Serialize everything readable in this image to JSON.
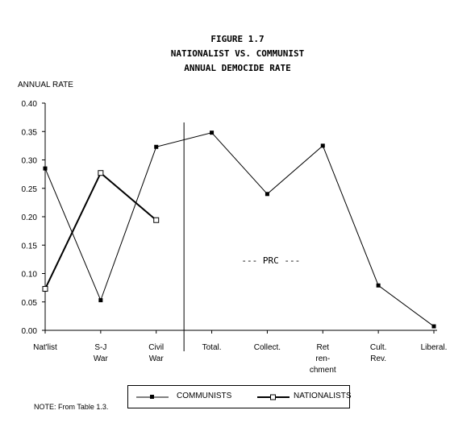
{
  "title_lines": [
    "FIGURE 1.7",
    "NATIONALIST VS. COMMUNIST",
    "ANNUAL DEMOCIDE RATE"
  ],
  "note": "NOTE: From Table 1.3.",
  "chart_data": {
    "type": "line",
    "title": "FIGURE 1.7 NATIONALIST VS. COMMUNIST ANNUAL DEMOCIDE RATE",
    "ylabel": "ANNUAL RATE",
    "xlabel": "",
    "ylim": [
      0,
      0.4
    ],
    "yticks": [
      "0.00",
      "0.05",
      "0.10",
      "0.15",
      "0.20",
      "0.25",
      "0.30",
      "0.35",
      "0.40"
    ],
    "categories": [
      [
        "Nat'list"
      ],
      [
        "S-J",
        "War"
      ],
      [
        "Civil",
        "War"
      ],
      [
        "Total."
      ],
      [
        "Collect."
      ],
      [
        "Ret",
        "ren-",
        "chment"
      ],
      [
        "Cult.",
        "Rev."
      ],
      [
        "Liberal."
      ]
    ],
    "series": [
      {
        "name": "COMMUNISTS",
        "marker": "filled-square",
        "color": "#000000",
        "values": [
          0.285,
          0.053,
          0.323,
          0.348,
          0.24,
          0.325,
          0.079,
          0.007
        ]
      },
      {
        "name": "NATIONALISTS",
        "marker": "hollow-square",
        "color": "#000000",
        "values": [
          0.073,
          0.277,
          0.194,
          null,
          null,
          null,
          null,
          null
        ]
      }
    ],
    "annotation": "--- PRC ---",
    "divider_after_category": 2,
    "legend_position": "bottom"
  }
}
